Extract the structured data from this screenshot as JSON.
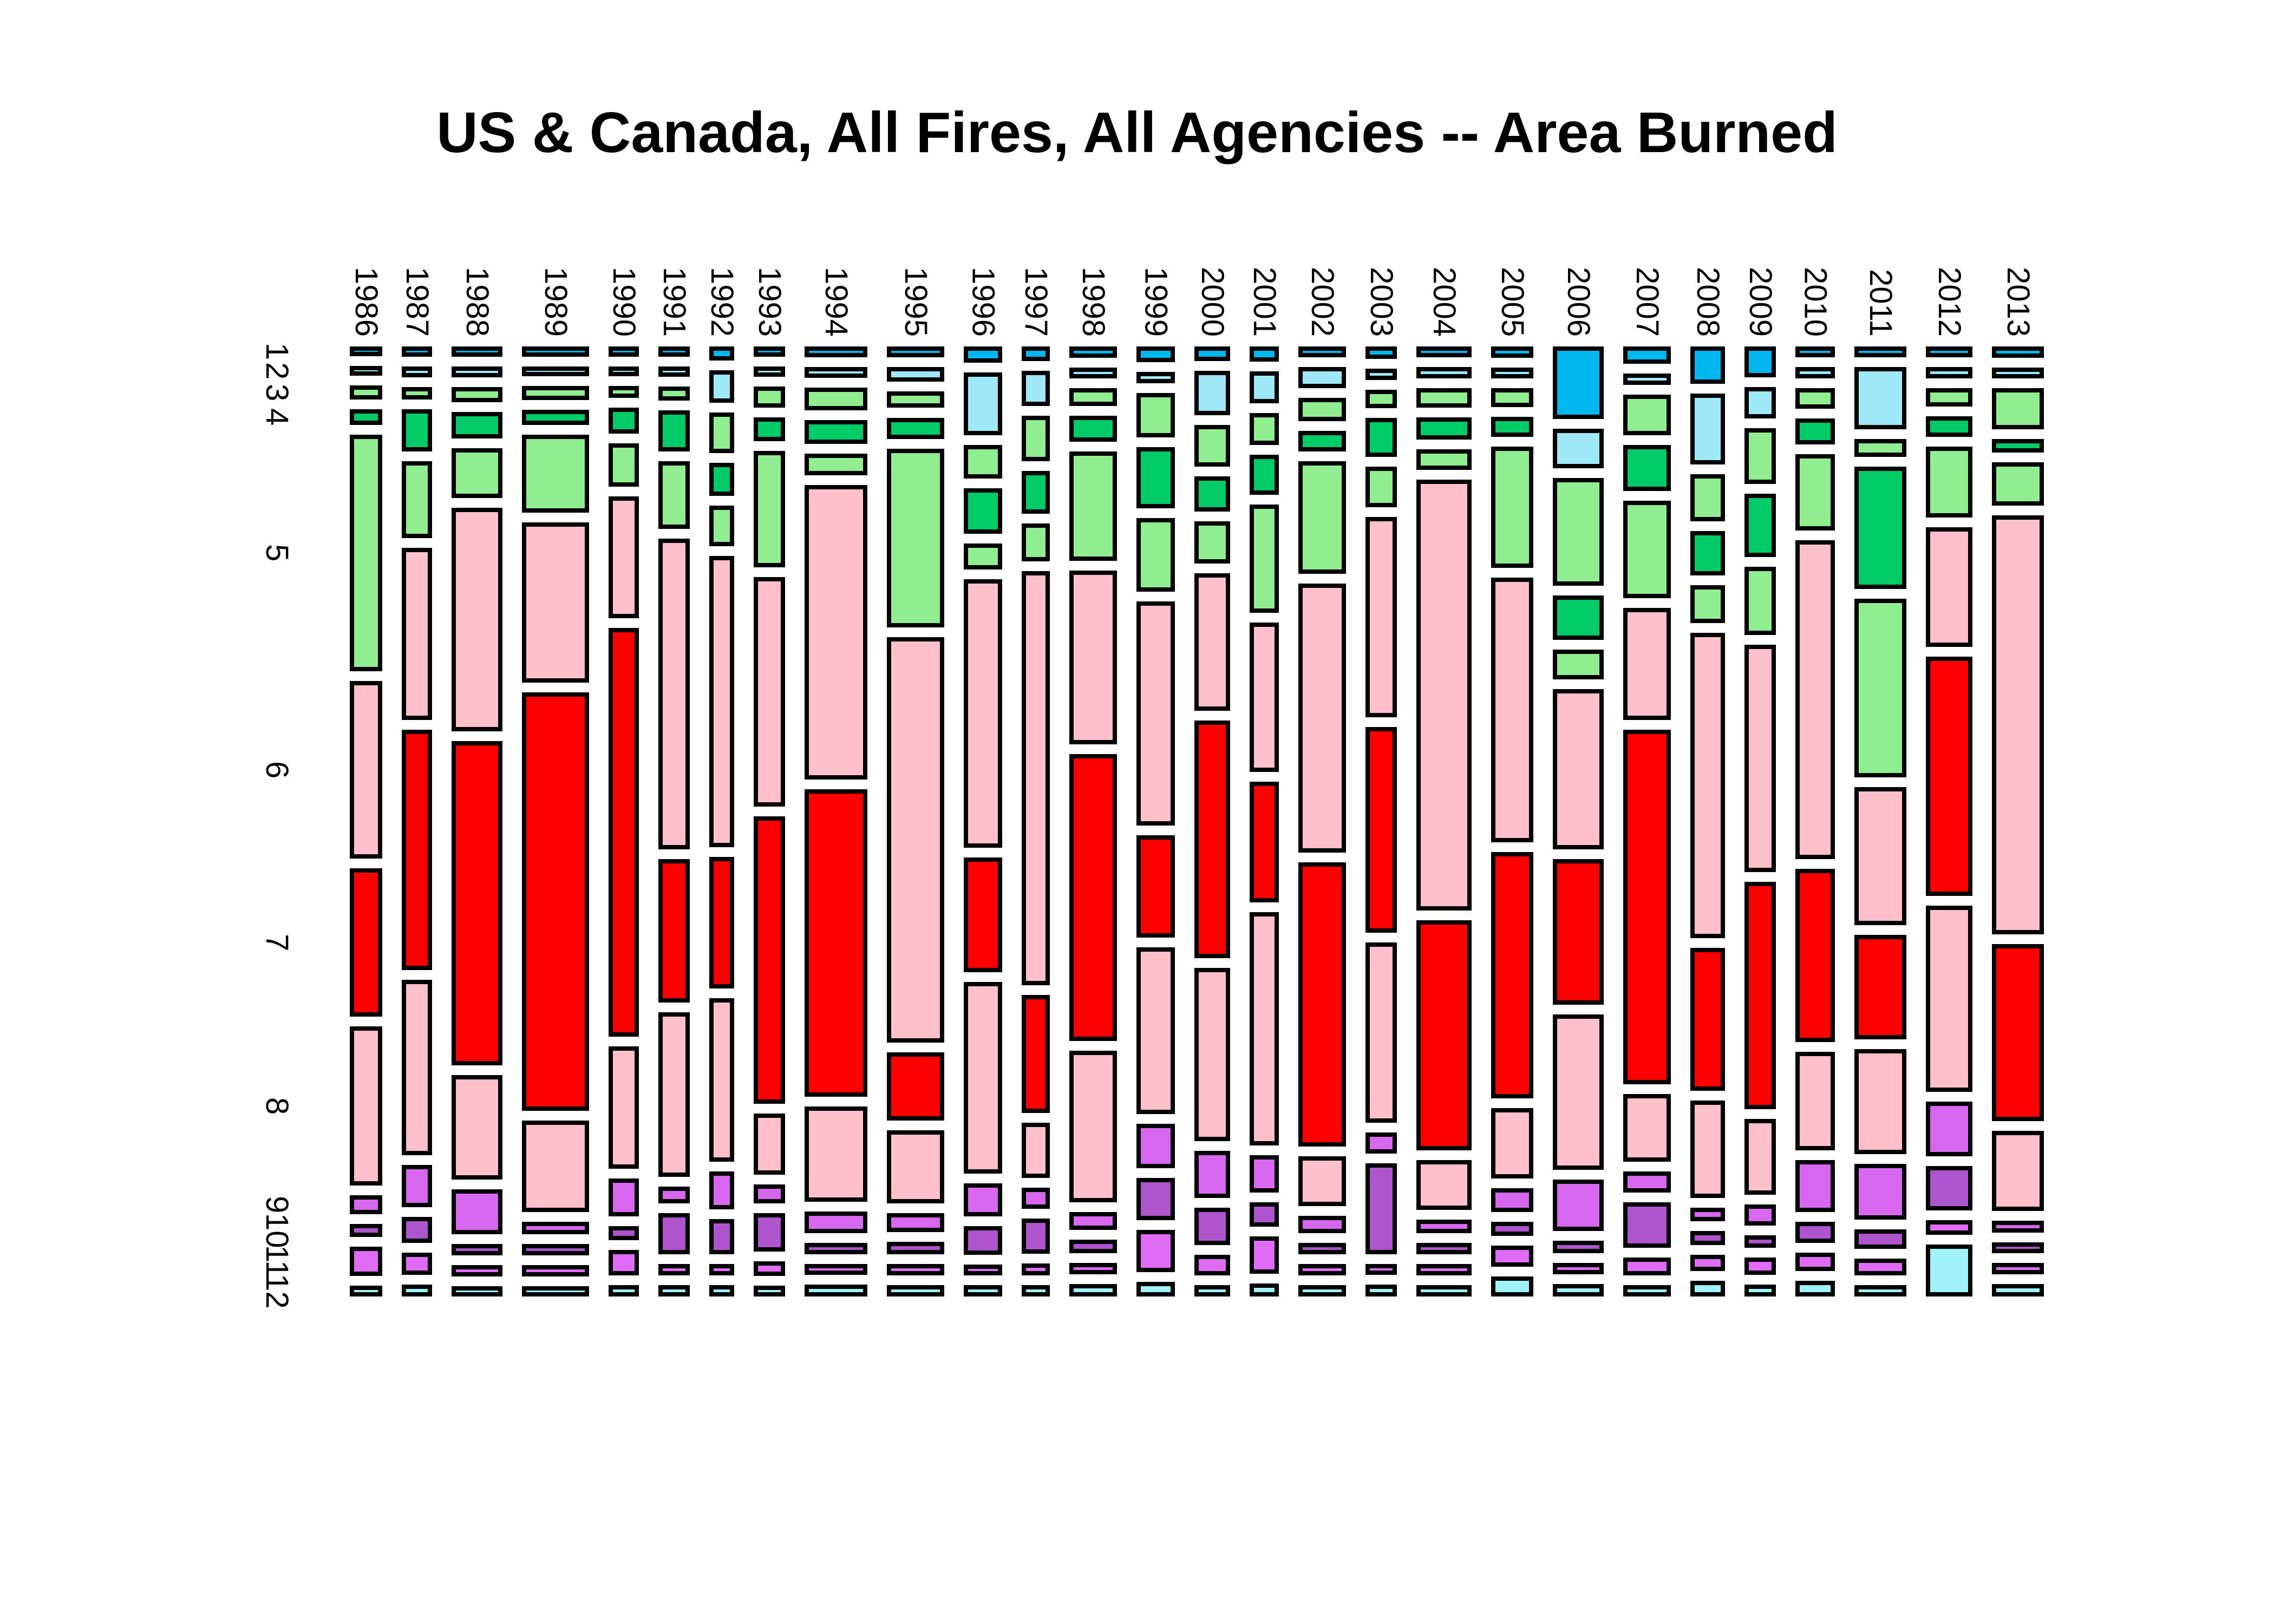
{
  "chart_data": {
    "type": "mosaic",
    "title": "US & Canada, All Fires, All Agencies -- Area Burned",
    "xlabel": "",
    "ylabel": "",
    "x_axis": {
      "meaning": "year",
      "labels": [
        "1986",
        "1987",
        "1988",
        "1989",
        "1990",
        "1991",
        "1992",
        "1993",
        "1994",
        "1995",
        "1996",
        "1997",
        "1998",
        "1999",
        "2000",
        "2001",
        "2002",
        "2003",
        "2004",
        "2005",
        "2006",
        "2007",
        "2008",
        "2009",
        "2010",
        "2011",
        "2012",
        "2013"
      ]
    },
    "y_axis": {
      "meaning": "month",
      "labels": [
        "1",
        "2",
        "3",
        "4",
        "5",
        "6",
        "7",
        "8",
        "9",
        "10",
        "11",
        "12"
      ]
    },
    "legend": "none",
    "grid": "off",
    "month_colors": {
      "1": "#00B8F0",
      "2": "#9FE8F7",
      "3": "#90EE90",
      "4": "#00CB66",
      "5": "#90EE90",
      "6": "#FFC0CB",
      "7": "#FF0000",
      "8": "#FFC0CB",
      "9": "#D867F0",
      "10": "#AE54CC",
      "11": "#E06BF5",
      "12": "#9FF2F7"
    },
    "cell_border_color": "#000000",
    "note_units": "column width = relative annual area burned; cell heights = relative monthly share within year",
    "years": [
      {
        "year": "1986",
        "width": 44,
        "months": [
          2,
          2,
          10,
          13,
          425,
          315,
          260,
          280,
          20,
          8,
          38,
          4
        ]
      },
      {
        "year": "1987",
        "width": 40,
        "months": [
          3,
          3,
          6,
          55,
          110,
          265,
          375,
          270,
          55,
          28,
          22,
          5
        ]
      },
      {
        "year": "1988",
        "width": 78,
        "months": [
          4,
          4,
          14,
          40,
          90,
          470,
          690,
          210,
          80,
          6,
          5,
          4
        ]
      },
      {
        "year": "1989",
        "width": 108,
        "months": [
          3,
          3,
          12,
          14,
          150,
          330,
          890,
          180,
          8,
          6,
          5,
          4
        ]
      },
      {
        "year": "1990",
        "width": 40,
        "months": [
          3,
          3,
          6,
          35,
          70,
          230,
          810,
          230,
          60,
          10,
          35,
          5
        ]
      },
      {
        "year": "1991",
        "width": 42,
        "months": [
          3,
          3,
          10,
          60,
          110,
          560,
          250,
          290,
          15,
          60,
          5,
          5
        ]
      },
      {
        "year": "1992",
        "width": 30,
        "months": [
          10,
          45,
          60,
          45,
          60,
          530,
          230,
          290,
          55,
          50,
          5,
          5
        ]
      },
      {
        "year": "1993",
        "width": 42,
        "months": [
          3,
          3,
          25,
          30,
          215,
          440,
          555,
          105,
          20,
          60,
          12,
          4
        ]
      },
      {
        "year": "1994",
        "width": 100,
        "months": [
          4,
          4,
          28,
          30,
          25,
          560,
          585,
          170,
          25,
          5,
          5,
          6
        ]
      },
      {
        "year": "1995",
        "width": 90,
        "months": [
          4,
          12,
          15,
          25,
          330,
          770,
          115,
          125,
          20,
          8,
          5,
          5
        ]
      },
      {
        "year": "1996",
        "width": 55,
        "months": [
          15,
          110,
          50,
          75,
          35,
          525,
          215,
          370,
          50,
          40,
          5,
          5
        ]
      },
      {
        "year": "1997",
        "width": 36,
        "months": [
          12,
          55,
          75,
          70,
          60,
          830,
          225,
          95,
          25,
          55,
          6,
          6
        ]
      },
      {
        "year": "1998",
        "width": 72,
        "months": [
          5,
          5,
          18,
          35,
          200,
          330,
          555,
          285,
          18,
          10,
          5,
          8
        ]
      },
      {
        "year": "1999",
        "width": 55,
        "months": [
          15,
          5,
          75,
          110,
          135,
          450,
          195,
          330,
          75,
          70,
          70,
          12
        ]
      },
      {
        "year": "2000",
        "width": 50,
        "months": [
          12,
          75,
          70,
          55,
          70,
          270,
          480,
          345,
          80,
          60,
          25,
          6
        ]
      },
      {
        "year": "2001",
        "width": 38,
        "months": [
          12,
          45,
          45,
          60,
          190,
          270,
          215,
          430,
          55,
          30,
          55,
          8
        ]
      },
      {
        "year": "2002",
        "width": 72,
        "months": [
          5,
          25,
          30,
          25,
          215,
          540,
          570,
          85,
          18,
          6,
          5,
          6
        ]
      },
      {
        "year": "2003",
        "width": 42,
        "months": [
          8,
          5,
          20,
          60,
          65,
          385,
          395,
          345,
          25,
          165,
          5,
          6
        ]
      },
      {
        "year": "2004",
        "width": 86,
        "months": [
          5,
          5,
          22,
          28,
          25,
          870,
          455,
          85,
          10,
          6,
          5,
          6
        ]
      },
      {
        "year": "2005",
        "width": 62,
        "months": [
          5,
          5,
          20,
          22,
          220,
          500,
          465,
          120,
          30,
          10,
          25,
          22
        ]
      },
      {
        "year": "2006",
        "width": 78,
        "months": [
          135,
          65,
          210,
          75,
          45,
          320,
          290,
          310,
          90,
          8,
          6,
          8
        ]
      },
      {
        "year": "2007",
        "width": 72,
        "months": [
          18,
          5,
          65,
          75,
          180,
          210,
          700,
          120,
          25,
          75,
          18,
          6
        ]
      },
      {
        "year": "2008",
        "width": 48,
        "months": [
          60,
          130,
          80,
          75,
          60,
          620,
          280,
          185,
          10,
          12,
          15,
          15
        ]
      },
      {
        "year": "2009",
        "width": 42,
        "months": [
          45,
          45,
          95,
          110,
          120,
          440,
          440,
          135,
          25,
          8,
          18,
          6
        ]
      },
      {
        "year": "2010",
        "width": 57,
        "months": [
          5,
          5,
          25,
          35,
          140,
          640,
          340,
          185,
          90,
          25,
          20,
          15
        ]
      },
      {
        "year": "2011",
        "width": 80,
        "months": [
          5,
          120,
          20,
          255,
          380,
          290,
          215,
          215,
          105,
          25,
          18,
          6
        ]
      },
      {
        "year": "2012",
        "width": 70,
        "months": [
          5,
          5,
          20,
          25,
          130,
          230,
          480,
          370,
          95,
          75,
          12,
          90
        ]
      },
      {
        "year": "2013",
        "width": 80,
        "months": [
          5,
          5,
          65,
          10,
          70,
          830,
          340,
          145,
          6,
          5,
          5,
          8
        ]
      }
    ]
  }
}
